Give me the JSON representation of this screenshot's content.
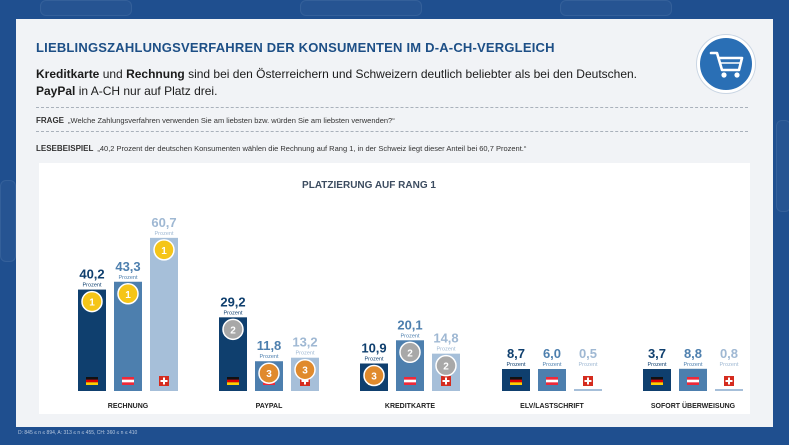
{
  "header": {
    "title": "LIEBLINGSZAHLUNGSVERFAHREN DER KONSUMENTEN IM D-A-CH-VERGLEICH",
    "lead_b1": "Kreditkarte",
    "lead_t1": " und ",
    "lead_b2": "Rechnung",
    "lead_t2": " sind bei den Österreichern und Schweizern deutlich beliebter als bei den Deutschen. ",
    "lead_b3": "PayPal",
    "lead_t3": " in A-CH nur auf Platz drei."
  },
  "frage": {
    "label": "FRAGE",
    "text": "„Welche Zahlungsverfahren verwenden Sie am liebsten bzw. würden Sie am liebsten verwenden?“"
  },
  "lesebeispiel": {
    "label": "LESEBEISPIEL",
    "text": "„40,2 Prozent der deutschen Konsumenten wählen die Rechnung auf Rang 1, in der Schweiz liegt dieser Anteil bei 60,7 Prozent.“"
  },
  "footer": {
    "text": "D: 845 ≤ n ≤ 894, A: 313 ≤ n ≤ 455, CH: 360 ≤ n ≤ 410"
  },
  "colors": {
    "bar_de": "#0f3f6e",
    "bar_at": "#4d7fae",
    "bar_ch": "#a6bfd9",
    "medal_gold": "#f5c518",
    "medal_silver": "#a8a8a8",
    "medal_bronze": "#e08a2c"
  },
  "chart_data": {
    "type": "bar",
    "title": "PLATZIERUNG AUF RANG 1",
    "unit_label": "Prozent",
    "categories": [
      "RECHNUNG",
      "PAYPAL",
      "KREDITKARTE",
      "ELV/LASTSCHRIFT",
      "SOFORT ÜBERWEISUNG"
    ],
    "series": [
      {
        "name": "D",
        "values": [
          40.2,
          29.2,
          10.9,
          8.7,
          3.7
        ],
        "labels": [
          "40,2",
          "29,2",
          "10,9",
          "8,7",
          "3,7"
        ],
        "ranks": [
          1,
          2,
          3,
          null,
          null
        ]
      },
      {
        "name": "A",
        "values": [
          43.3,
          11.8,
          20.1,
          6.0,
          8.8
        ],
        "labels": [
          "43,3",
          "11,8",
          "20,1",
          "6,0",
          "8,8"
        ],
        "ranks": [
          1,
          3,
          2,
          null,
          null
        ]
      },
      {
        "name": "CH",
        "values": [
          60.7,
          13.2,
          14.8,
          0.5,
          0.8
        ],
        "labels": [
          "60,7",
          "13,2",
          "14,8",
          "0,5",
          "0,8"
        ],
        "ranks": [
          1,
          3,
          2,
          null,
          null
        ]
      }
    ],
    "ylim": [
      0,
      65
    ]
  }
}
